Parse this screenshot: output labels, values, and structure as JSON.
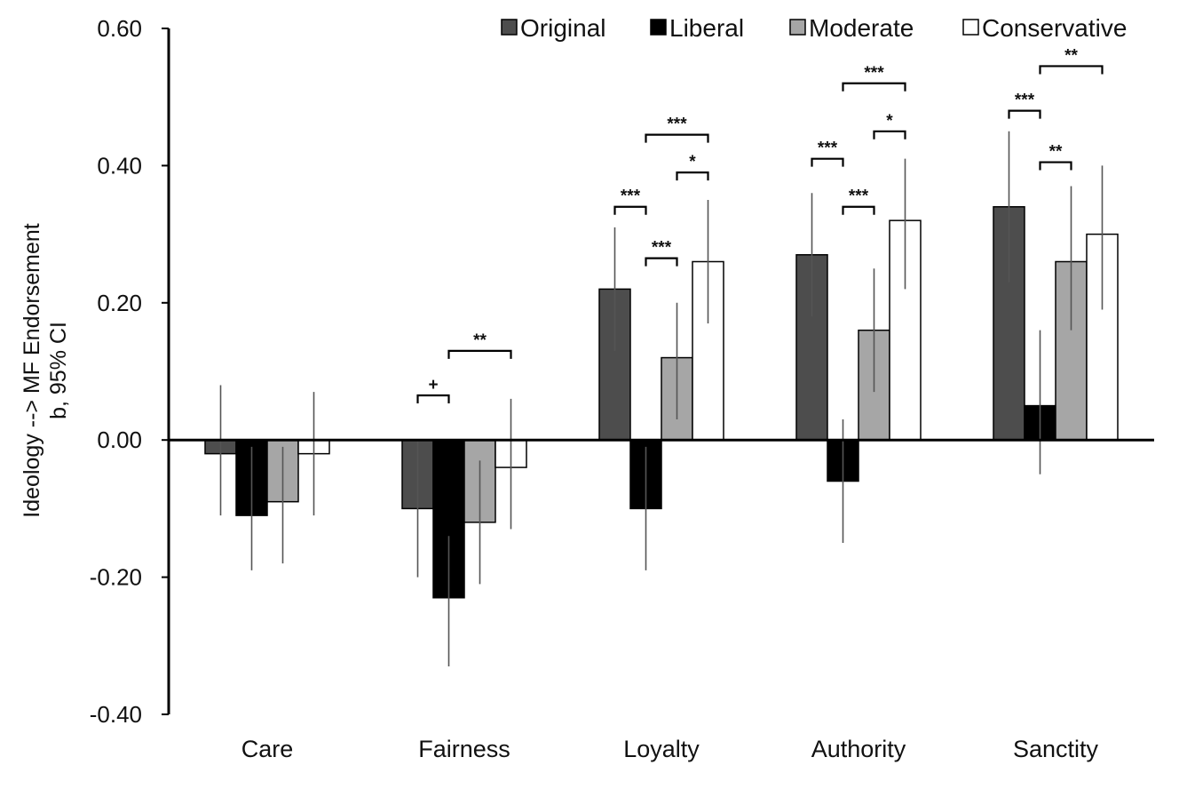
{
  "chart_data": {
    "type": "bar",
    "title": "",
    "xlabel": "",
    "ylabel_line1": "Ideology --> MF Endorsement",
    "ylabel_line2": "b, 95% CI",
    "ylim": [
      -0.4,
      0.6
    ],
    "yticks": [
      -0.4,
      -0.2,
      0.0,
      0.2,
      0.4,
      0.6
    ],
    "ytick_labels": [
      "-0.40",
      "-0.20",
      "0.00",
      "0.20",
      "0.40",
      "0.60"
    ],
    "categories": [
      "Care",
      "Fairness",
      "Loyalty",
      "Authority",
      "Sanctity"
    ],
    "legend_position": "top-right",
    "series": [
      {
        "name": "Original",
        "color": "#4d4d4d",
        "values": [
          -0.02,
          -0.1,
          0.22,
          0.27,
          0.34
        ],
        "ci_low": [
          -0.11,
          -0.2,
          0.13,
          0.18,
          0.23
        ],
        "ci_high": [
          0.08,
          0.0,
          0.31,
          0.36,
          0.45
        ]
      },
      {
        "name": "Liberal",
        "color": "#000000",
        "values": [
          -0.11,
          -0.23,
          -0.1,
          -0.06,
          0.05
        ],
        "ci_low": [
          -0.19,
          -0.33,
          -0.19,
          -0.15,
          -0.05
        ],
        "ci_high": [
          -0.01,
          -0.14,
          -0.01,
          0.03,
          0.16
        ]
      },
      {
        "name": "Moderate",
        "color": "#a6a6a6",
        "values": [
          -0.09,
          -0.12,
          0.12,
          0.16,
          0.26
        ],
        "ci_low": [
          -0.18,
          -0.21,
          0.03,
          0.07,
          0.16
        ],
        "ci_high": [
          -0.01,
          -0.03,
          0.2,
          0.25,
          0.37
        ]
      },
      {
        "name": "Conservative",
        "color": "#ffffff",
        "values": [
          -0.02,
          -0.04,
          0.26,
          0.32,
          0.3
        ],
        "ci_low": [
          -0.11,
          -0.13,
          0.17,
          0.22,
          0.19
        ],
        "ci_high": [
          0.07,
          0.06,
          0.35,
          0.41,
          0.4
        ]
      }
    ],
    "annotations": [
      {
        "category": 1,
        "from": 0,
        "to": 1,
        "level": 0.065,
        "label": "+"
      },
      {
        "category": 1,
        "from": 1,
        "to": 3,
        "level": 0.13,
        "label": "**"
      },
      {
        "category": 2,
        "from": 0,
        "to": 1,
        "level": 0.34,
        "label": "***"
      },
      {
        "category": 2,
        "from": 1,
        "to": 2,
        "level": 0.265,
        "label": "***"
      },
      {
        "category": 2,
        "from": 2,
        "to": 3,
        "level": 0.39,
        "label": "*"
      },
      {
        "category": 2,
        "from": 1,
        "to": 3,
        "level": 0.445,
        "label": "***"
      },
      {
        "category": 3,
        "from": 0,
        "to": 1,
        "level": 0.41,
        "label": "***"
      },
      {
        "category": 3,
        "from": 1,
        "to": 2,
        "level": 0.34,
        "label": "***"
      },
      {
        "category": 3,
        "from": 2,
        "to": 3,
        "level": 0.45,
        "label": "*"
      },
      {
        "category": 3,
        "from": 1,
        "to": 3,
        "level": 0.52,
        "label": "***"
      },
      {
        "category": 4,
        "from": 0,
        "to": 1,
        "level": 0.48,
        "label": "***"
      },
      {
        "category": 4,
        "from": 1,
        "to": 2,
        "level": 0.405,
        "label": "**"
      },
      {
        "category": 4,
        "from": 1,
        "to": 3,
        "level": 0.545,
        "label": "**"
      }
    ]
  }
}
